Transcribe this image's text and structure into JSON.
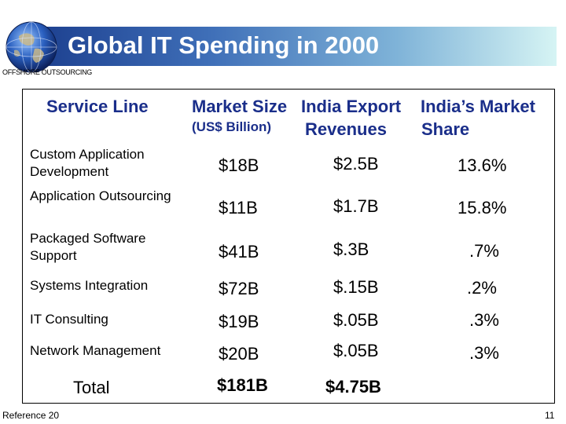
{
  "title": "Global IT Spending in 2000",
  "subtitle": "OFFSHORE OUTSOURCING",
  "table": {
    "headers": {
      "service_line": "Service Line",
      "market_size": "Market Size",
      "market_size_unit": "(US$ Billion)",
      "india_export": "India Export",
      "india_export_line2": "Revenues",
      "india_share": "India’s Market",
      "india_share_line2": "Share"
    },
    "rows": [
      {
        "service": "Custom Application Development",
        "market": "$18B",
        "export": "$2.5B",
        "share": "13.6%"
      },
      {
        "service": "Application Outsourcing",
        "market": "$11B",
        "export": "$1.7B",
        "share": "15.8%"
      },
      {
        "service": "Packaged Software Support",
        "market": "$41B",
        "export": "$.3B",
        "share": ".7%"
      },
      {
        "service": "Systems Integration",
        "market": "$72B",
        "export": "$.15B",
        "share": ".2%"
      },
      {
        "service": "IT Consulting",
        "market": "$19B",
        "export": "$.05B",
        "share": ".3%"
      },
      {
        "service": "Network Management",
        "market": "$20B",
        "export": "$.05B",
        "share": ".3%"
      }
    ],
    "total": {
      "label": "Total",
      "market": "$181B",
      "export": "$4.75B"
    }
  },
  "footer": {
    "reference": "Reference 20",
    "page_number": "11"
  },
  "colors": {
    "header_text": "#1a2e8a",
    "banner_start": "#1a3c8c",
    "banner_end": "#d6f4f4"
  },
  "icons": {
    "logo": "globe-icon"
  }
}
